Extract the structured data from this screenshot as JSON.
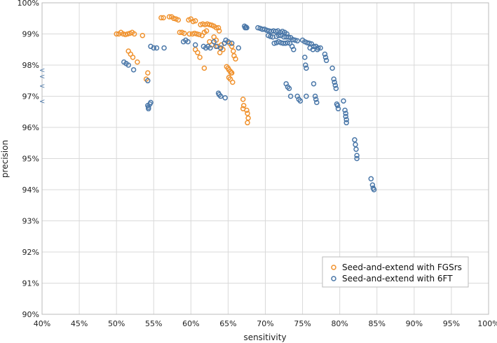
{
  "chart_data": {
    "type": "scatter",
    "title": "",
    "xlabel": "sensitivity",
    "ylabel": "precision",
    "xlim": [
      40,
      100
    ],
    "ylim": [
      90,
      100
    ],
    "grid": true,
    "legend_position": "bottom-right",
    "x_ticks": [
      "40%",
      "45%",
      "50%",
      "55%",
      "60%",
      "65%",
      "70%",
      "75%",
      "80%",
      "85%",
      "90%",
      "95%",
      "100%"
    ],
    "y_ticks": [
      "90%",
      "91%",
      "92%",
      "93%",
      "94%",
      "95%",
      "96%",
      "97%",
      "98%",
      "99%",
      "100%"
    ],
    "out_of_range_markers": {
      "symbol": "<",
      "color": "#4a77a8",
      "x": 40,
      "y": [
        97.85,
        97.65,
        97.35,
        96.85
      ]
    },
    "series": [
      {
        "name": "Seed-and-extend with FGSrs",
        "color": "#f0922e",
        "points": [
          [
            50.0,
            99.0
          ],
          [
            50.3,
            99.0
          ],
          [
            50.6,
            99.05
          ],
          [
            50.9,
            99.0
          ],
          [
            51.2,
            98.98
          ],
          [
            51.5,
            99.0
          ],
          [
            51.8,
            99.02
          ],
          [
            52.1,
            99.05
          ],
          [
            52.4,
            99.0
          ],
          [
            53.5,
            98.95
          ],
          [
            51.6,
            98.45
          ],
          [
            51.9,
            98.35
          ],
          [
            52.2,
            98.25
          ],
          [
            52.8,
            98.1
          ],
          [
            54.2,
            97.75
          ],
          [
            54.0,
            97.55
          ],
          [
            56.0,
            99.52
          ],
          [
            56.3,
            99.52
          ],
          [
            57.1,
            99.55
          ],
          [
            57.4,
            99.55
          ],
          [
            57.7,
            99.5
          ],
          [
            58.0,
            99.48
          ],
          [
            58.3,
            99.45
          ],
          [
            58.5,
            99.05
          ],
          [
            58.8,
            99.05
          ],
          [
            59.1,
            99.02
          ],
          [
            59.7,
            99.45
          ],
          [
            60.0,
            99.48
          ],
          [
            60.3,
            99.4
          ],
          [
            60.6,
            99.42
          ],
          [
            59.8,
            99.0
          ],
          [
            60.2,
            99.0
          ],
          [
            60.5,
            99.02
          ],
          [
            60.8,
            99.0
          ],
          [
            61.1,
            98.98
          ],
          [
            61.5,
            98.95
          ],
          [
            61.8,
            99.05
          ],
          [
            62.1,
            99.1
          ],
          [
            61.3,
            99.3
          ],
          [
            61.6,
            99.32
          ],
          [
            61.9,
            99.3
          ],
          [
            62.2,
            99.32
          ],
          [
            62.5,
            99.3
          ],
          [
            62.8,
            99.28
          ],
          [
            63.1,
            99.25
          ],
          [
            63.4,
            99.2
          ],
          [
            63.7,
            99.2
          ],
          [
            63.8,
            99.1
          ],
          [
            62.5,
            98.75
          ],
          [
            62.8,
            98.65
          ],
          [
            63.1,
            98.9
          ],
          [
            63.4,
            98.8
          ],
          [
            63.6,
            98.6
          ],
          [
            63.9,
            98.4
          ],
          [
            64.1,
            98.65
          ],
          [
            64.3,
            98.5
          ],
          [
            60.6,
            98.5
          ],
          [
            60.9,
            98.4
          ],
          [
            61.2,
            98.25
          ],
          [
            61.8,
            97.9
          ],
          [
            64.8,
            97.95
          ],
          [
            65.0,
            97.9
          ],
          [
            65.1,
            97.85
          ],
          [
            65.3,
            97.8
          ],
          [
            65.4,
            97.75
          ],
          [
            65.5,
            97.75
          ],
          [
            65.1,
            97.6
          ],
          [
            65.3,
            97.55
          ],
          [
            65.6,
            97.45
          ],
          [
            65.2,
            98.7
          ],
          [
            65.5,
            98.6
          ],
          [
            65.7,
            98.45
          ],
          [
            65.8,
            98.3
          ],
          [
            66.0,
            98.2
          ],
          [
            67.0,
            96.9
          ],
          [
            67.1,
            96.7
          ],
          [
            67.0,
            96.6
          ],
          [
            67.5,
            96.55
          ],
          [
            67.6,
            96.45
          ],
          [
            67.7,
            96.3
          ],
          [
            67.6,
            96.15
          ]
        ]
      },
      {
        "name": "Seed-and-extend with 6FT",
        "color": "#4a77a8",
        "points": [
          [
            51.0,
            98.1
          ],
          [
            51.3,
            98.05
          ],
          [
            51.6,
            98.0
          ],
          [
            52.3,
            97.85
          ],
          [
            54.2,
            97.5
          ],
          [
            54.2,
            96.7
          ],
          [
            54.3,
            96.65
          ],
          [
            54.5,
            96.75
          ],
          [
            54.6,
            96.8
          ],
          [
            54.3,
            96.6
          ],
          [
            54.6,
            98.6
          ],
          [
            55.0,
            98.55
          ],
          [
            55.4,
            98.55
          ],
          [
            56.4,
            98.55
          ],
          [
            59.0,
            98.75
          ],
          [
            59.3,
            98.8
          ],
          [
            59.6,
            98.75
          ],
          [
            60.6,
            98.65
          ],
          [
            61.7,
            98.6
          ],
          [
            62.0,
            98.55
          ],
          [
            62.3,
            98.6
          ],
          [
            62.6,
            98.55
          ],
          [
            63.1,
            98.75
          ],
          [
            63.4,
            98.6
          ],
          [
            64.0,
            98.55
          ],
          [
            64.5,
            98.7
          ],
          [
            64.7,
            98.8
          ],
          [
            65.0,
            98.75
          ],
          [
            65.5,
            98.7
          ],
          [
            66.4,
            98.55
          ],
          [
            63.7,
            97.1
          ],
          [
            63.8,
            97.05
          ],
          [
            64.0,
            97.0
          ],
          [
            64.6,
            96.95
          ],
          [
            67.2,
            99.25
          ],
          [
            67.3,
            99.2
          ],
          [
            67.4,
            99.22
          ],
          [
            67.5,
            99.2
          ],
          [
            69.0,
            99.2
          ],
          [
            69.3,
            99.18
          ],
          [
            69.6,
            99.15
          ],
          [
            69.9,
            99.15
          ],
          [
            70.2,
            99.12
          ],
          [
            70.5,
            99.1
          ],
          [
            70.8,
            99.08
          ],
          [
            71.1,
            99.1
          ],
          [
            71.4,
            99.08
          ],
          [
            71.7,
            99.1
          ],
          [
            72.0,
            99.05
          ],
          [
            72.3,
            99.08
          ],
          [
            72.6,
            99.05
          ],
          [
            72.9,
            99.0
          ],
          [
            70.4,
            98.95
          ],
          [
            70.7,
            98.92
          ],
          [
            71.0,
            98.9
          ],
          [
            71.5,
            98.92
          ],
          [
            71.8,
            98.95
          ],
          [
            72.1,
            98.95
          ],
          [
            72.5,
            98.9
          ],
          [
            72.8,
            98.9
          ],
          [
            73.1,
            98.9
          ],
          [
            73.4,
            98.88
          ],
          [
            73.7,
            98.82
          ],
          [
            74.0,
            98.8
          ],
          [
            74.3,
            98.78
          ],
          [
            71.2,
            98.7
          ],
          [
            71.5,
            98.72
          ],
          [
            71.8,
            98.75
          ],
          [
            72.1,
            98.72
          ],
          [
            72.4,
            98.7
          ],
          [
            72.7,
            98.7
          ],
          [
            73.0,
            98.72
          ],
          [
            73.3,
            98.7
          ],
          [
            73.6,
            98.6
          ],
          [
            73.8,
            98.5
          ],
          [
            75.0,
            98.8
          ],
          [
            75.3,
            98.75
          ],
          [
            75.6,
            98.72
          ],
          [
            75.9,
            98.7
          ],
          [
            76.2,
            98.68
          ],
          [
            76.5,
            98.6
          ],
          [
            76.8,
            98.6
          ],
          [
            77.1,
            98.55
          ],
          [
            77.4,
            98.55
          ],
          [
            76.0,
            98.55
          ],
          [
            76.4,
            98.5
          ],
          [
            77.0,
            98.5
          ],
          [
            75.3,
            98.25
          ],
          [
            75.4,
            98.0
          ],
          [
            75.5,
            97.9
          ],
          [
            78.0,
            98.35
          ],
          [
            78.1,
            98.25
          ],
          [
            78.2,
            98.15
          ],
          [
            72.8,
            97.4
          ],
          [
            73.0,
            97.3
          ],
          [
            73.2,
            97.25
          ],
          [
            73.4,
            97.0
          ],
          [
            74.3,
            97.0
          ],
          [
            74.5,
            96.9
          ],
          [
            74.7,
            96.85
          ],
          [
            75.5,
            97.0
          ],
          [
            76.5,
            97.4
          ],
          [
            76.7,
            97.0
          ],
          [
            76.8,
            96.9
          ],
          [
            76.9,
            96.8
          ],
          [
            79.0,
            97.9
          ],
          [
            79.2,
            97.55
          ],
          [
            79.3,
            97.45
          ],
          [
            79.4,
            97.35
          ],
          [
            79.5,
            97.25
          ],
          [
            79.6,
            96.75
          ],
          [
            79.7,
            96.7
          ],
          [
            79.8,
            96.6
          ],
          [
            80.5,
            96.85
          ],
          [
            80.7,
            96.55
          ],
          [
            80.8,
            96.45
          ],
          [
            80.8,
            96.35
          ],
          [
            80.9,
            96.25
          ],
          [
            80.9,
            96.15
          ],
          [
            82.0,
            95.6
          ],
          [
            82.1,
            95.45
          ],
          [
            82.2,
            95.3
          ],
          [
            82.3,
            95.1
          ],
          [
            82.3,
            95.0
          ],
          [
            84.2,
            94.35
          ],
          [
            84.4,
            94.15
          ],
          [
            84.5,
            94.05
          ],
          [
            84.6,
            94.0
          ]
        ]
      }
    ]
  }
}
